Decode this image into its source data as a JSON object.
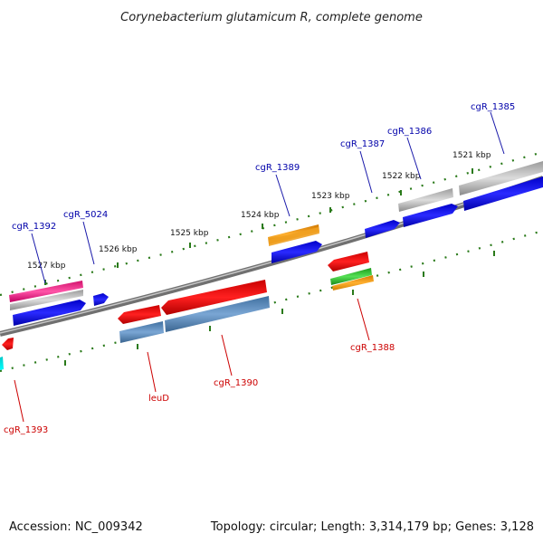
{
  "title": "Corynebacterium glutamicum R, complete genome",
  "footer": {
    "accession": "Accession: NC_009342",
    "summary": "Topology: circular; Length: 3,314,179 bp; Genes: 3,128"
  },
  "colors": {
    "forward_label": "#0000aa",
    "reverse_label": "#cc0000",
    "backbone": "#808080",
    "tick": "#2a7a1a",
    "leader": "#1a1aaa",
    "leader_reverse": "#cc0000"
  },
  "ticks": [
    "1527 kbp",
    "1526 kbp",
    "1525 kbp",
    "1524 kbp",
    "1523 kbp",
    "1522 kbp",
    "1521 kbp"
  ],
  "forward_genes": [
    "cgR_1392",
    "cgR_5024",
    "cgR_1389",
    "cgR_1387",
    "cgR_1386",
    "cgR_1385"
  ],
  "reverse_genes": [
    "cgR_1393",
    "leuD",
    "cgR_1390",
    "cgR_1388"
  ]
}
